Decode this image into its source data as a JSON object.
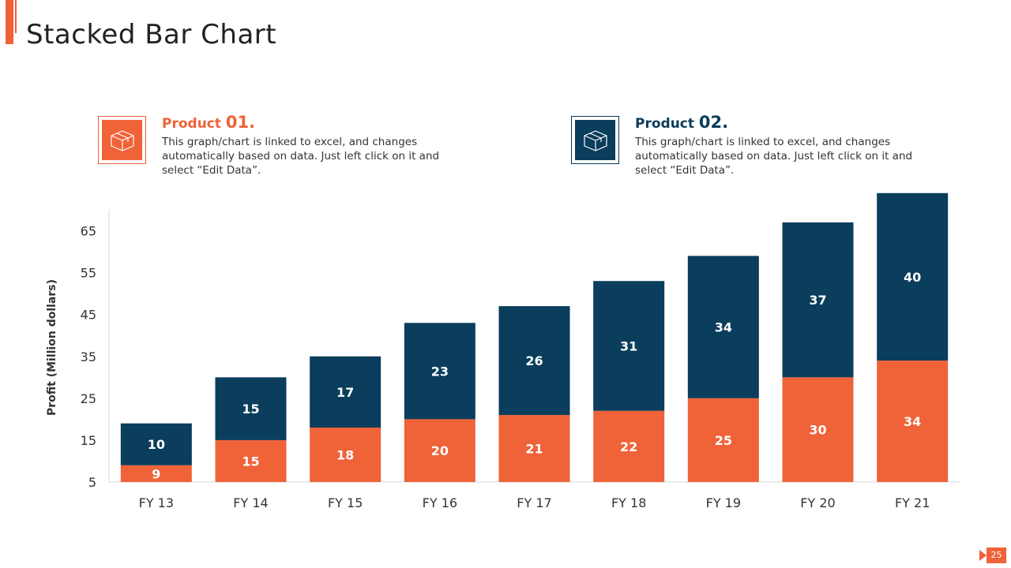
{
  "slide": {
    "title": "Stacked Bar Chart",
    "page_number": "25",
    "accent_color": "#f06238",
    "dark_color": "#0b3d5c"
  },
  "legend": [
    {
      "label": "Product",
      "number": "01.",
      "description_lines": [
        "This graph/chart is linked to excel, and changes",
        "automatically based on data. Just left click on it and",
        "select “Edit Data”."
      ],
      "icon": "box-icon",
      "color": "#f06238"
    },
    {
      "label": "Product",
      "number": "02.",
      "description_lines": [
        "This graph/chart is linked to excel, and changes",
        "automatically based on data. Just left click on it and",
        "select “Edit Data”."
      ],
      "icon": "box-icon",
      "color": "#0b3d5c"
    }
  ],
  "chart_data": {
    "type": "bar",
    "stacked": true,
    "categories": [
      "FY 13",
      "FY 14",
      "FY 15",
      "FY 16",
      "FY 17",
      "FY 18",
      "FY 19",
      "FY 20",
      "FY 21"
    ],
    "series": [
      {
        "name": "Product 01.",
        "color": "#f06238",
        "values": [
          9,
          15,
          18,
          20,
          21,
          22,
          25,
          30,
          34
        ]
      },
      {
        "name": "Product 02.",
        "color": "#0b3d5c",
        "values": [
          10,
          15,
          17,
          23,
          26,
          31,
          34,
          37,
          40
        ]
      }
    ],
    "ylabel": "Profit  (Million dollars)",
    "yticks": [
      5,
      15,
      25,
      35,
      45,
      55,
      65
    ],
    "ylim": [
      5,
      70
    ],
    "data_labels": true,
    "grid": false,
    "legend_position": "top"
  }
}
